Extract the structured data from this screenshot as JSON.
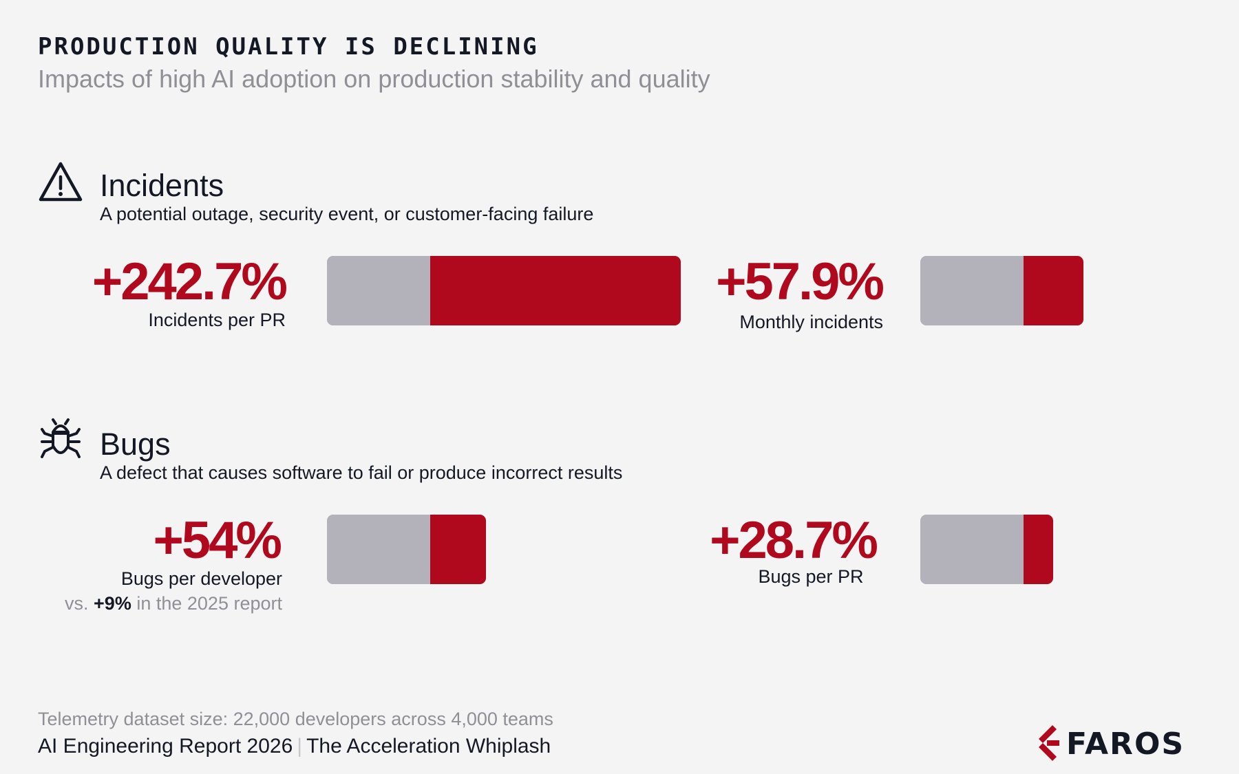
{
  "title": "PRODUCTION QUALITY IS DECLINING",
  "subtitle": "Impacts of high AI adoption on production stability and quality",
  "chart_data": {
    "type": "bar",
    "baseline_percent": 100,
    "colors": {
      "baseline": "#b3b1b9",
      "increase": "#b0091e"
    },
    "sections": [
      {
        "name": "Incidents",
        "icon": "warning-triangle-icon",
        "description": "A potential outage, security event, or customer-facing failure",
        "metrics": [
          {
            "value_label": "+242.7%",
            "value": 242.7,
            "label": "Incidents per PR"
          },
          {
            "value_label": "+57.9%",
            "value": 57.9,
            "label": "Monthly incidents"
          }
        ]
      },
      {
        "name": "Bugs",
        "icon": "bug-icon",
        "description": "A defect that causes software to fail or produce incorrect results",
        "metrics": [
          {
            "value_label": "+54%",
            "value": 54,
            "label": "Bugs per developer",
            "note_prefix": "vs.",
            "note_value": "+9%",
            "note_suffix": "in the 2025 report"
          },
          {
            "value_label": "+28.7%",
            "value": 28.7,
            "label": "Bugs per PR"
          }
        ]
      }
    ]
  },
  "footer": {
    "dataset": "Telemetry dataset size: 22,000 developers across 4,000 teams",
    "report": "AI Engineering Report 2026",
    "separator": "|",
    "report_subtitle": "The Acceleration Whiplash"
  },
  "logo": {
    "text": "FAROS",
    "color": "#b0091e"
  }
}
